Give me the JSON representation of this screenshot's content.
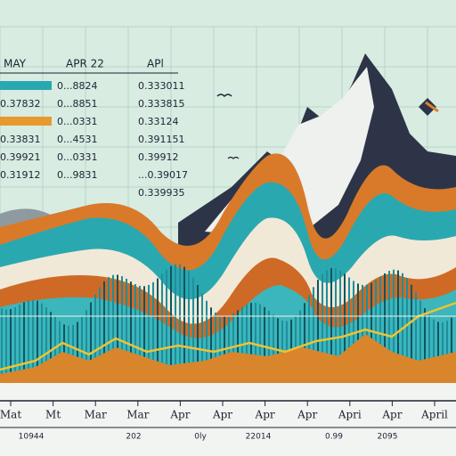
{
  "table": {
    "headers": [
      "MAY",
      "APR 22",
      "APl"
    ],
    "rows": [
      {
        "apr": "0...8824",
        "api": "0.333011"
      },
      {
        "may": "0.37832",
        "apr": "0...8851",
        "api": "0.333815"
      },
      {
        "apr": "0...0331",
        "api": "0.33124"
      },
      {
        "may": "0.33831",
        "apr": "0...4531",
        "api": "0.391151"
      },
      {
        "may": "0.39921",
        "apr": "0...0331",
        "api": "0.39912"
      },
      {
        "may": "0.31912",
        "apr": "0...9831",
        "api": "...0.39017"
      },
      {
        "api": "0.339935"
      }
    ]
  },
  "x_labels": [
    "Mat",
    "Mt",
    "Mar",
    "Mar",
    "Apr",
    "Apr",
    "Apr",
    "Apr",
    "Apri",
    "Apr",
    "April"
  ],
  "bottom_labels": [
    "10944",
    "202",
    "0ly",
    "22014",
    "0.99",
    "2095"
  ]
}
